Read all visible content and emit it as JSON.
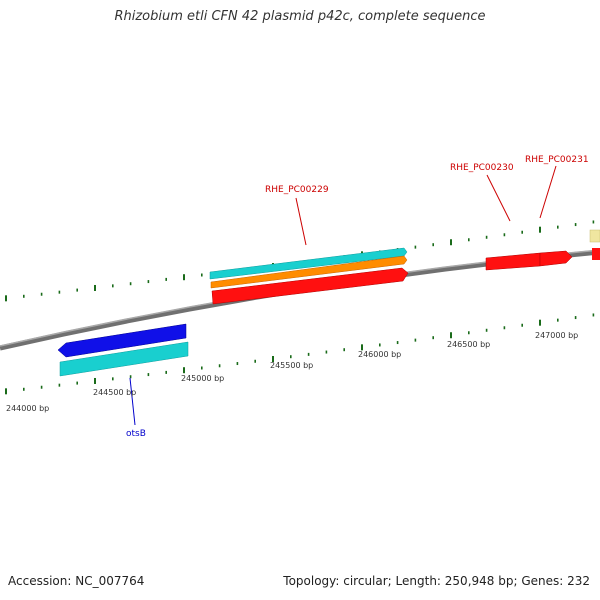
{
  "title": "Rhizobium etli CFN 42 plasmid p42c, complete sequence",
  "footer": {
    "accession": "Accession: NC_007764",
    "summary": "Topology: circular; Length: 250,948 bp; Genes: 232"
  },
  "colors": {
    "backbone": "#888888",
    "tick": "#1a6b1a",
    "red": "#ff0000",
    "cyan": "#19cfcf",
    "orange": "#ff8c00",
    "blue": "#1010e8",
    "yellow": "#f0e6a0",
    "blue_label": "#0000cc",
    "red_label": "#cc0000"
  },
  "ticks": [
    {
      "label": "244000 bp"
    },
    {
      "label": "244500 bp"
    },
    {
      "label": "245000 bp"
    },
    {
      "label": "245500 bp"
    },
    {
      "label": "246000 bp"
    },
    {
      "label": "246500 bp"
    },
    {
      "label": "247000 bp"
    }
  ],
  "genes": {
    "otsB": "otsB",
    "rhe229": "RHE_PC00229",
    "rhe230": "RHE_PC00230",
    "rhe231": "RHE_PC00231"
  }
}
